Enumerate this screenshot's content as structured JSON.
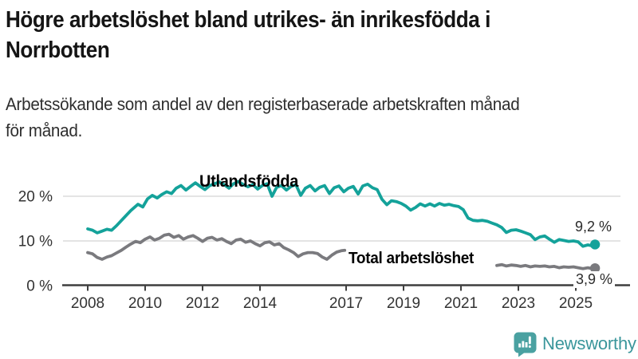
{
  "header": {
    "title_lines": [
      "Högre arbetslöshet bland utrikes- än inrikesfödda i",
      "Norrbotten"
    ],
    "subtitle_lines": [
      "Arbetssökande som andel av den registerbaserade arbetskraften månad",
      "för månad."
    ]
  },
  "colors": {
    "foreign_born_series": "#14a29a",
    "total_series": "#7a7a7e",
    "axis": "#3f3f3f",
    "gridline": "#dcdcdc",
    "tick_text": "#333333",
    "brand_icon": "#4aa1a1",
    "brand_text": "#3a969b"
  },
  "chart_data": {
    "type": "line",
    "unit": "%",
    "x_axis": {
      "range": [
        2007.9,
        2025.9
      ],
      "ticks": [
        {
          "year": 2008,
          "label": "2008"
        },
        {
          "year": 2010,
          "label": "2010"
        },
        {
          "year": 2012,
          "label": "2012"
        },
        {
          "year": 2014,
          "label": "2014"
        },
        {
          "year": 2017,
          "label": "2017"
        },
        {
          "year": 2019,
          "label": "2019"
        },
        {
          "year": 2021,
          "label": "2021"
        },
        {
          "year": 2023,
          "label": "2023"
        },
        {
          "year": 2025,
          "label": "2025"
        }
      ]
    },
    "y_axis": {
      "range": [
        0,
        25
      ],
      "grid": true,
      "ticks": [
        {
          "value": 0,
          "label": "0 %"
        },
        {
          "value": 10,
          "label": "10 %"
        },
        {
          "value": 20,
          "label": "20 %"
        }
      ]
    },
    "series": [
      {
        "name": "Utlandsfödda",
        "color": "#14a29a",
        "end_value": 9.2,
        "end_label": "9,2 %",
        "segments": [
          [
            [
              2008.0,
              12.7
            ],
            [
              2008.17,
              12.4
            ],
            [
              2008.33,
              11.8
            ],
            [
              2008.5,
              12.2
            ],
            [
              2008.67,
              12.6
            ],
            [
              2008.83,
              12.4
            ],
            [
              2009.0,
              13.4
            ],
            [
              2009.25,
              15.1
            ],
            [
              2009.5,
              16.8
            ],
            [
              2009.75,
              18.2
            ],
            [
              2009.92,
              17.6
            ],
            [
              2010.08,
              19.4
            ],
            [
              2010.25,
              20.2
            ],
            [
              2010.42,
              19.6
            ],
            [
              2010.58,
              20.4
            ],
            [
              2010.75,
              21.0
            ],
            [
              2010.92,
              20.6
            ],
            [
              2011.08,
              21.8
            ],
            [
              2011.25,
              22.4
            ],
            [
              2011.42,
              21.4
            ],
            [
              2011.58,
              22.2
            ],
            [
              2011.75,
              23.0
            ],
            [
              2011.92,
              22.2
            ],
            [
              2012.08,
              21.5
            ],
            [
              2012.25,
              22.4
            ],
            [
              2012.42,
              22.8
            ],
            [
              2012.58,
              23.2
            ],
            [
              2012.75,
              22.6
            ],
            [
              2012.92,
              21.8
            ],
            [
              2013.08,
              22.8
            ],
            [
              2013.25,
              23.3
            ],
            [
              2013.42,
              22.6
            ],
            [
              2013.58,
              22.1
            ],
            [
              2013.75,
              22.6
            ],
            [
              2013.92,
              21.6
            ],
            [
              2014.08,
              22.4
            ],
            [
              2014.25,
              22.8
            ],
            [
              2014.42,
              20.0
            ],
            [
              2014.58,
              22.0
            ],
            [
              2014.75,
              22.4
            ],
            [
              2014.92,
              21.4
            ],
            [
              2015.08,
              22.2
            ],
            [
              2015.25,
              22.6
            ],
            [
              2015.42,
              20.2
            ],
            [
              2015.58,
              21.8
            ],
            [
              2015.75,
              22.4
            ],
            [
              2015.92,
              21.2
            ],
            [
              2016.08,
              22.0
            ],
            [
              2016.25,
              22.4
            ],
            [
              2016.42,
              20.6
            ],
            [
              2016.58,
              21.9
            ],
            [
              2016.75,
              22.3
            ],
            [
              2016.92,
              21.0
            ],
            [
              2017.08,
              21.8
            ],
            [
              2017.25,
              22.2
            ],
            [
              2017.42,
              20.5
            ],
            [
              2017.58,
              22.3
            ],
            [
              2017.75,
              22.7
            ],
            [
              2017.92,
              21.9
            ],
            [
              2018.08,
              21.5
            ],
            [
              2018.25,
              19.3
            ],
            [
              2018.42,
              18.1
            ],
            [
              2018.58,
              19.0
            ],
            [
              2018.75,
              18.8
            ],
            [
              2018.92,
              18.4
            ],
            [
              2019.08,
              17.8
            ],
            [
              2019.25,
              16.9
            ],
            [
              2019.42,
              17.5
            ],
            [
              2019.58,
              18.3
            ],
            [
              2019.75,
              17.8
            ],
            [
              2019.92,
              18.3
            ],
            [
              2020.08,
              17.8
            ],
            [
              2020.25,
              18.4
            ],
            [
              2020.42,
              18.0
            ],
            [
              2020.58,
              18.2
            ],
            [
              2020.75,
              17.9
            ],
            [
              2020.92,
              17.7
            ],
            [
              2021.08,
              17.0
            ],
            [
              2021.17,
              16.0
            ],
            [
              2021.25,
              15.1
            ],
            [
              2021.42,
              14.6
            ],
            [
              2021.58,
              14.5
            ],
            [
              2021.75,
              14.6
            ],
            [
              2021.92,
              14.4
            ],
            [
              2022.08,
              14.0
            ],
            [
              2022.25,
              13.6
            ],
            [
              2022.42,
              13.0
            ],
            [
              2022.58,
              11.9
            ],
            [
              2022.75,
              12.4
            ],
            [
              2022.92,
              12.5
            ],
            [
              2023.08,
              12.2
            ],
            [
              2023.25,
              11.8
            ],
            [
              2023.42,
              11.4
            ],
            [
              2023.58,
              10.3
            ],
            [
              2023.75,
              10.9
            ],
            [
              2023.92,
              11.1
            ],
            [
              2024.08,
              10.4
            ],
            [
              2024.25,
              9.7
            ],
            [
              2024.42,
              10.3
            ],
            [
              2024.58,
              10.1
            ],
            [
              2024.75,
              9.9
            ],
            [
              2024.92,
              10.0
            ],
            [
              2025.08,
              9.8
            ],
            [
              2025.25,
              8.8
            ],
            [
              2025.42,
              9.1
            ],
            [
              2025.58,
              8.9
            ],
            [
              2025.67,
              9.2
            ]
          ]
        ]
      },
      {
        "name": "Total arbetslöshet",
        "color": "#7a7a7e",
        "end_value": 3.9,
        "end_label": "3,9 %",
        "segments": [
          [
            [
              2008.0,
              7.4
            ],
            [
              2008.17,
              7.1
            ],
            [
              2008.33,
              6.3
            ],
            [
              2008.5,
              5.9
            ],
            [
              2008.67,
              6.4
            ],
            [
              2008.83,
              6.7
            ],
            [
              2009.0,
              7.3
            ],
            [
              2009.17,
              7.9
            ],
            [
              2009.33,
              8.6
            ],
            [
              2009.5,
              9.3
            ],
            [
              2009.67,
              9.9
            ],
            [
              2009.83,
              9.6
            ],
            [
              2010.0,
              10.4
            ],
            [
              2010.17,
              10.9
            ],
            [
              2010.33,
              10.2
            ],
            [
              2010.5,
              10.6
            ],
            [
              2010.67,
              11.3
            ],
            [
              2010.83,
              11.5
            ],
            [
              2011.0,
              10.8
            ],
            [
              2011.17,
              11.2
            ],
            [
              2011.33,
              10.4
            ],
            [
              2011.5,
              10.9
            ],
            [
              2011.67,
              11.2
            ],
            [
              2011.83,
              10.6
            ],
            [
              2012.0,
              9.9
            ],
            [
              2012.17,
              10.6
            ],
            [
              2012.33,
              10.8
            ],
            [
              2012.5,
              10.2
            ],
            [
              2012.67,
              10.5
            ],
            [
              2012.83,
              9.9
            ],
            [
              2013.0,
              9.4
            ],
            [
              2013.17,
              10.2
            ],
            [
              2013.33,
              10.4
            ],
            [
              2013.5,
              9.7
            ],
            [
              2013.67,
              10.0
            ],
            [
              2013.83,
              9.4
            ],
            [
              2014.0,
              8.9
            ],
            [
              2014.17,
              9.6
            ],
            [
              2014.33,
              9.8
            ],
            [
              2014.5,
              9.1
            ],
            [
              2014.67,
              9.4
            ],
            [
              2014.83,
              8.5
            ],
            [
              2015.0,
              8.0
            ],
            [
              2015.17,
              7.4
            ],
            [
              2015.33,
              6.5
            ],
            [
              2015.5,
              7.1
            ],
            [
              2015.67,
              7.4
            ],
            [
              2015.83,
              7.4
            ],
            [
              2016.0,
              7.2
            ],
            [
              2016.17,
              6.4
            ],
            [
              2016.33,
              5.9
            ],
            [
              2016.5,
              6.8
            ],
            [
              2016.67,
              7.5
            ],
            [
              2016.83,
              7.8
            ],
            [
              2016.95,
              7.9
            ]
          ],
          [
            [
              2022.25,
              4.5
            ],
            [
              2022.42,
              4.7
            ],
            [
              2022.58,
              4.4
            ],
            [
              2022.75,
              4.6
            ],
            [
              2022.92,
              4.5
            ],
            [
              2023.08,
              4.3
            ],
            [
              2023.25,
              4.5
            ],
            [
              2023.42,
              4.2
            ],
            [
              2023.58,
              4.4
            ],
            [
              2023.75,
              4.3
            ],
            [
              2023.92,
              4.4
            ],
            [
              2024.08,
              4.2
            ],
            [
              2024.25,
              4.3
            ],
            [
              2024.42,
              4.0
            ],
            [
              2024.58,
              4.2
            ],
            [
              2024.75,
              4.1
            ],
            [
              2024.92,
              4.2
            ],
            [
              2025.08,
              4.0
            ],
            [
              2025.25,
              3.8
            ],
            [
              2025.42,
              4.0
            ],
            [
              2025.58,
              3.8
            ],
            [
              2025.67,
              3.9
            ]
          ]
        ]
      }
    ]
  },
  "footer": {
    "brand": "Newsworthy"
  }
}
